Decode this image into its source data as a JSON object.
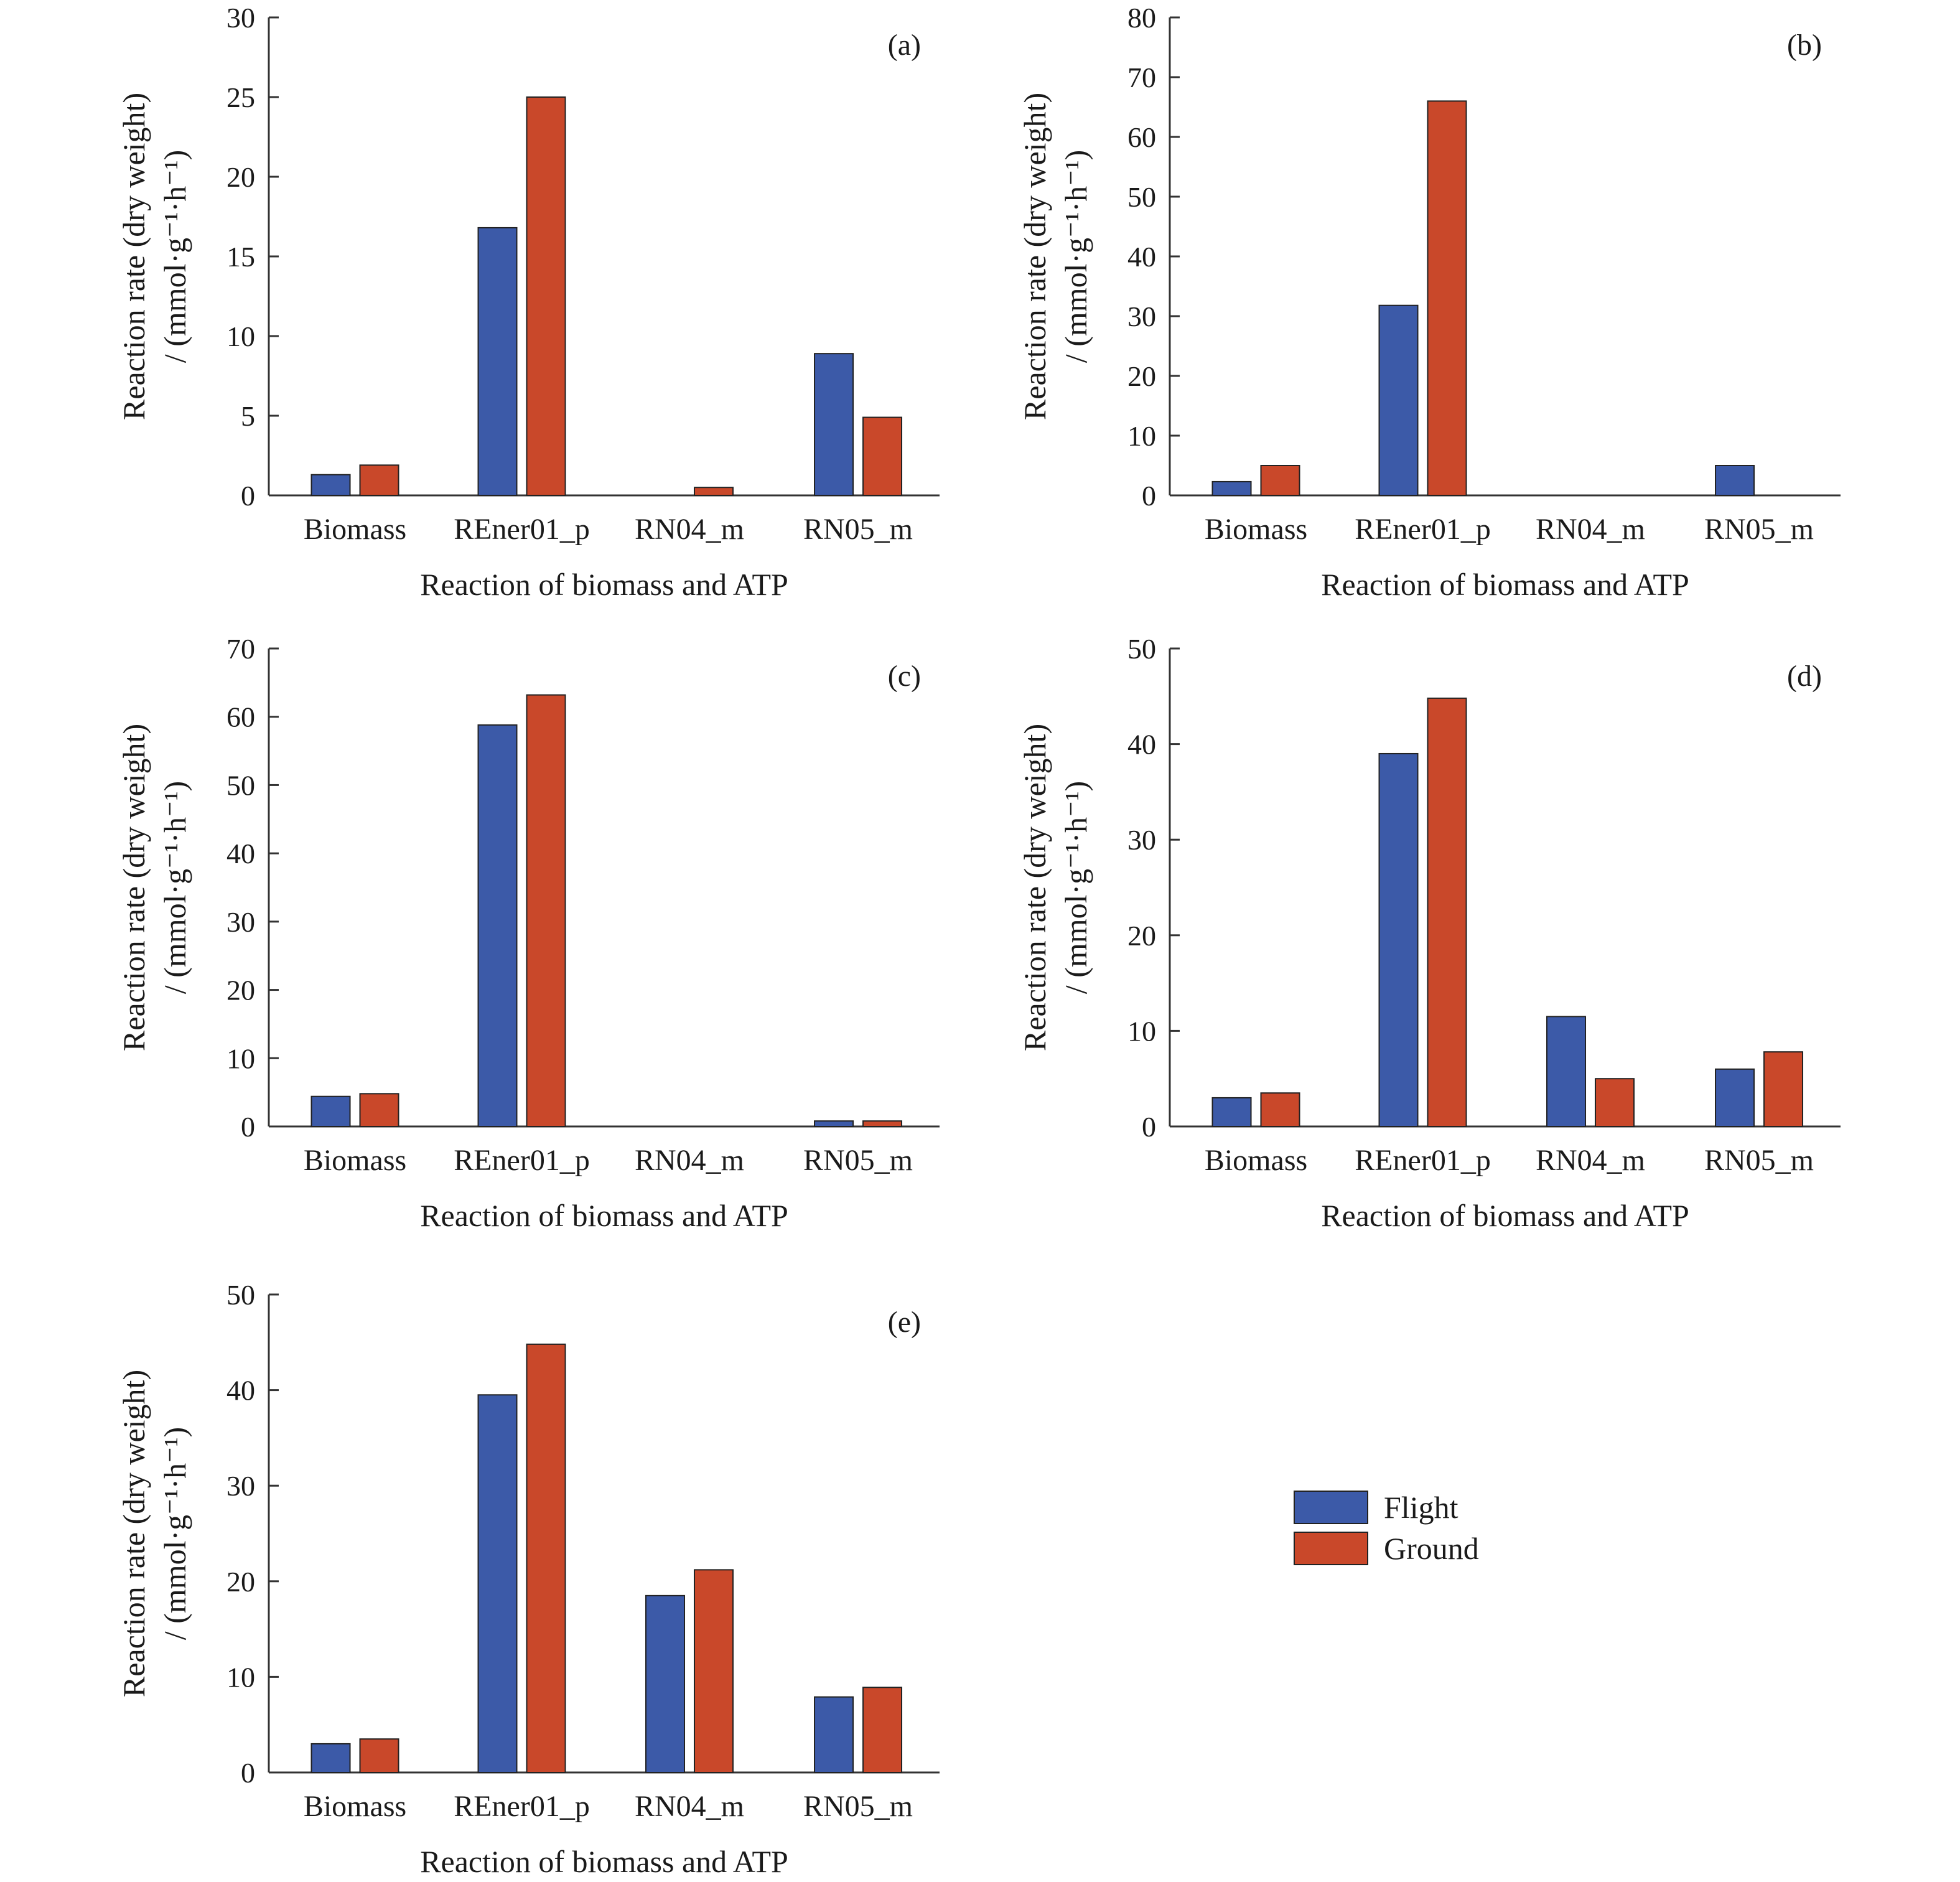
{
  "colors": {
    "flight": "#3c5aa8",
    "ground": "#c9482a",
    "axis": "#333333"
  },
  "legend": {
    "items": [
      {
        "key": "flight",
        "label": "Flight"
      },
      {
        "key": "ground",
        "label": "Ground"
      }
    ]
  },
  "chart_data": [
    {
      "type": "bar",
      "panel_label": "(a)",
      "categories": [
        "Biomass",
        "REner01_p",
        "RN04_m",
        "RN05_m"
      ],
      "series": [
        {
          "name": "Flight",
          "values": [
            1.3,
            16.8,
            0,
            8.9
          ]
        },
        {
          "name": "Ground",
          "values": [
            1.9,
            25.0,
            0.5,
            4.9
          ]
        }
      ],
      "xlabel": "Reaction of biomass and ATP",
      "ylabel": [
        "Reaction rate (dry weight)",
        "/ (mmol·g⁻¹·h⁻¹)"
      ],
      "ylim": [
        0,
        30
      ],
      "yticks": [
        0,
        5,
        10,
        15,
        20,
        25,
        30
      ]
    },
    {
      "type": "bar",
      "panel_label": "(b)",
      "categories": [
        "Biomass",
        "REner01_p",
        "RN04_m",
        "RN05_m"
      ],
      "series": [
        {
          "name": "Flight",
          "values": [
            2.3,
            31.8,
            0,
            5.0
          ]
        },
        {
          "name": "Ground",
          "values": [
            5.0,
            66.0,
            0,
            0
          ]
        }
      ],
      "xlabel": "Reaction of biomass and ATP",
      "ylabel": [
        "Reaction rate (dry weight)",
        "/ (mmol·g⁻¹·h⁻¹)"
      ],
      "ylim": [
        0,
        80
      ],
      "yticks": [
        0,
        10,
        20,
        30,
        40,
        50,
        60,
        70,
        80
      ]
    },
    {
      "type": "bar",
      "panel_label": "(c)",
      "categories": [
        "Biomass",
        "REner01_p",
        "RN04_m",
        "RN05_m"
      ],
      "series": [
        {
          "name": "Flight",
          "values": [
            4.4,
            58.8,
            0,
            0.8
          ]
        },
        {
          "name": "Ground",
          "values": [
            4.8,
            63.2,
            0,
            0.8
          ]
        }
      ],
      "xlabel": "Reaction of biomass and ATP",
      "ylabel": [
        "Reaction rate (dry weight)",
        "/ (mmol·g⁻¹·h⁻¹)"
      ],
      "ylim": [
        0,
        70
      ],
      "yticks": [
        0,
        10,
        20,
        30,
        40,
        50,
        60,
        70
      ]
    },
    {
      "type": "bar",
      "panel_label": "(d)",
      "categories": [
        "Biomass",
        "REner01_p",
        "RN04_m",
        "RN05_m"
      ],
      "series": [
        {
          "name": "Flight",
          "values": [
            3.0,
            39.0,
            11.5,
            6.0
          ]
        },
        {
          "name": "Ground",
          "values": [
            3.5,
            44.8,
            5.0,
            7.8
          ]
        }
      ],
      "xlabel": "Reaction of biomass and ATP",
      "ylabel": [
        "Reaction rate (dry weight)",
        "/ (mmol·g⁻¹·h⁻¹)"
      ],
      "ylim": [
        0,
        50
      ],
      "yticks": [
        0,
        10,
        20,
        30,
        40,
        50
      ]
    },
    {
      "type": "bar",
      "panel_label": "(e)",
      "categories": [
        "Biomass",
        "REner01_p",
        "RN04_m",
        "RN05_m"
      ],
      "series": [
        {
          "name": "Flight",
          "values": [
            3.0,
            39.5,
            18.5,
            7.9
          ]
        },
        {
          "name": "Ground",
          "values": [
            3.5,
            44.8,
            21.2,
            8.9
          ]
        }
      ],
      "xlabel": "Reaction of biomass and ATP",
      "ylabel": [
        "Reaction rate (dry weight)",
        "/ (mmol·g⁻¹·h⁻¹)"
      ],
      "ylim": [
        0,
        50
      ],
      "yticks": [
        0,
        10,
        20,
        30,
        40,
        50
      ]
    }
  ]
}
